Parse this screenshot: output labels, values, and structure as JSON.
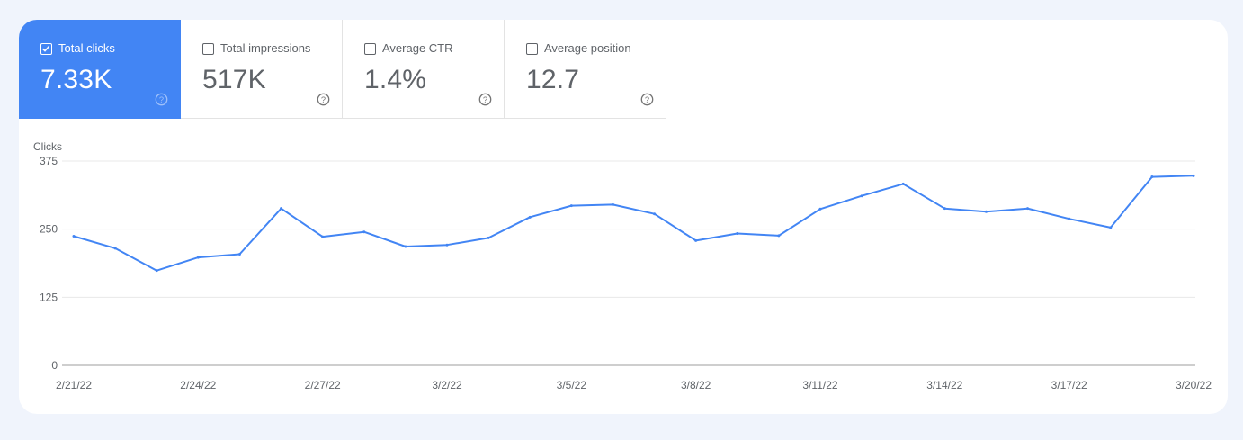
{
  "metrics": [
    {
      "label": "Total clicks",
      "value": "7.33K",
      "checked": true
    },
    {
      "label": "Total impressions",
      "value": "517K",
      "checked": false
    },
    {
      "label": "Average CTR",
      "value": "1.4%",
      "checked": false
    },
    {
      "label": "Average position",
      "value": "12.7",
      "checked": false
    }
  ],
  "colors": {
    "accent": "#4285f4",
    "line": "#4285f4",
    "grid": "#e8e8e8"
  },
  "icons": {
    "help": "help-circle-icon",
    "checkbox": "checkbox-icon"
  },
  "chart_data": {
    "type": "line",
    "ylabel": "Clicks",
    "ylim": [
      0,
      375
    ],
    "yticks": [
      "0",
      "125",
      "250",
      "375"
    ],
    "x": [
      "2/21/22",
      "2/22/22",
      "2/23/22",
      "2/24/22",
      "2/25/22",
      "2/26/22",
      "2/27/22",
      "2/28/22",
      "3/1/22",
      "3/2/22",
      "3/3/22",
      "3/4/22",
      "3/5/22",
      "3/6/22",
      "3/7/22",
      "3/8/22",
      "3/9/22",
      "3/10/22",
      "3/11/22",
      "3/12/22",
      "3/13/22",
      "3/14/22",
      "3/15/22",
      "3/16/22",
      "3/17/22",
      "3/18/22",
      "3/19/22",
      "3/20/22"
    ],
    "xticks": [
      "2/21/22",
      "2/24/22",
      "2/27/22",
      "3/2/22",
      "3/5/22",
      "3/8/22",
      "3/11/22",
      "3/14/22",
      "3/17/22",
      "3/20/22"
    ],
    "series": [
      {
        "values": [
          237,
          215,
          174,
          198,
          204,
          288,
          236,
          245,
          218,
          221,
          234,
          272,
          293,
          295,
          278,
          229,
          242,
          238,
          287,
          311,
          333,
          288,
          282,
          288,
          269,
          253,
          346,
          348
        ]
      }
    ],
    "grid": true,
    "legend": "none"
  }
}
